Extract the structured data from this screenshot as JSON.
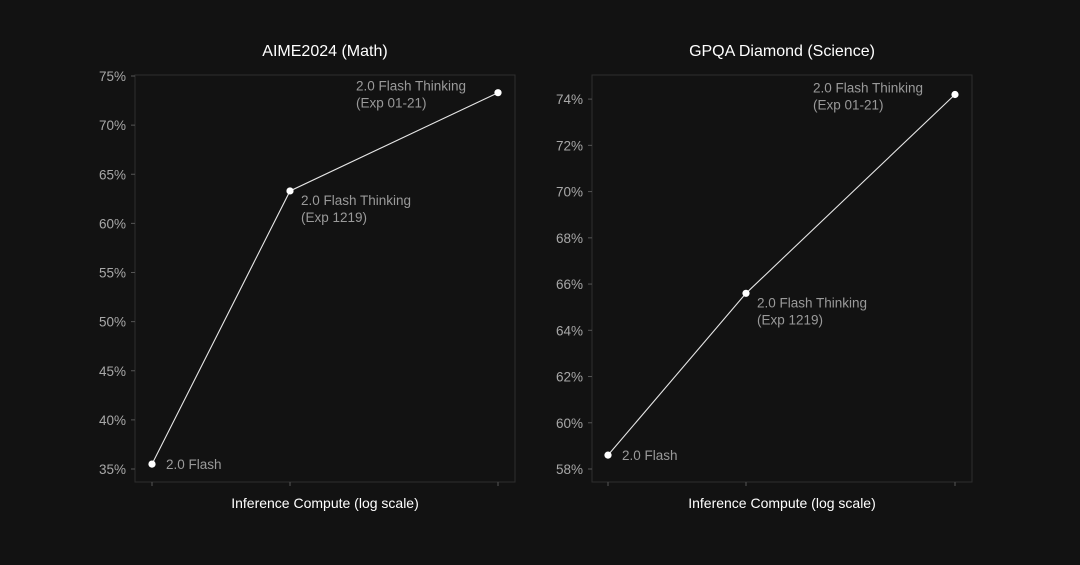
{
  "chart_data": [
    {
      "type": "line",
      "title": "AIME2024 (Math)",
      "xlabel": "Inference Compute (log scale)",
      "ylabel": "",
      "x_scale": "log",
      "ylim": [
        35,
        75
      ],
      "y_ticks": [
        "35%",
        "40%",
        "45%",
        "50%",
        "55%",
        "60%",
        "65%",
        "70%",
        "75%"
      ],
      "grid": false,
      "points": [
        {
          "label_lines": [
            "2.0 Flash"
          ],
          "y": 35.5
        },
        {
          "label_lines": [
            "2.0 Flash Thinking",
            "(Exp 1219)"
          ],
          "y": 63.3
        },
        {
          "label_lines": [
            "2.0 Flash Thinking",
            "(Exp 01-21)"
          ],
          "y": 73.3
        }
      ]
    },
    {
      "type": "line",
      "title": "GPQA Diamond (Science)",
      "xlabel": "Inference Compute (log scale)",
      "ylabel": "",
      "x_scale": "log",
      "ylim": [
        58,
        75
      ],
      "y_ticks": [
        "58%",
        "60%",
        "62%",
        "64%",
        "66%",
        "68%",
        "70%",
        "72%",
        "74%"
      ],
      "grid": false,
      "points": [
        {
          "label_lines": [
            "2.0 Flash"
          ],
          "y": 58.6
        },
        {
          "label_lines": [
            "2.0 Flash Thinking",
            "(Exp 1219)"
          ],
          "y": 65.6
        },
        {
          "label_lines": [
            "2.0 Flash Thinking",
            "(Exp 01-21)"
          ],
          "y": 74.2
        }
      ]
    }
  ],
  "colors": {
    "background": "#121212",
    "line": "#e6e6e6",
    "point": "#ffffff",
    "frame": "#2e2e2e",
    "tick_label": "#a8a8a8",
    "point_label": "#9a9a9a"
  }
}
